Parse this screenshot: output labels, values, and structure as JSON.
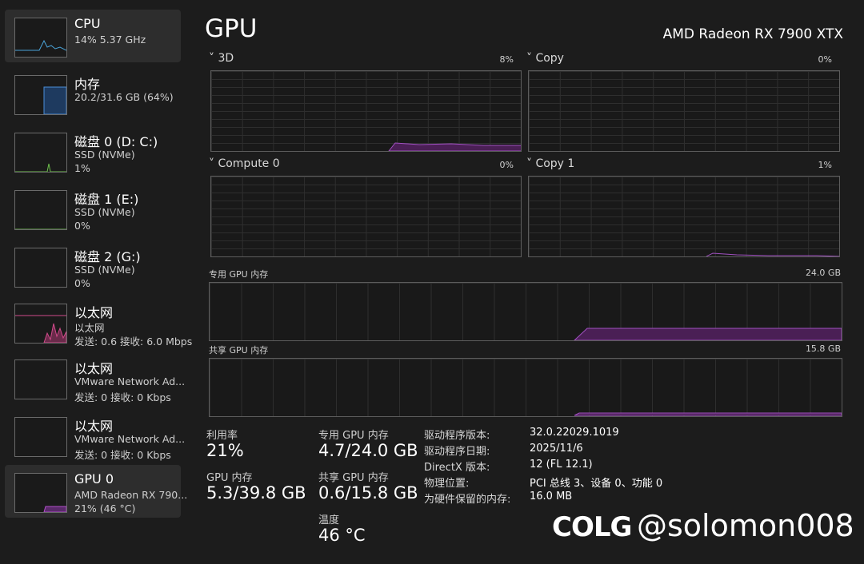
{
  "sidebar": {
    "items": [
      {
        "title": "CPU",
        "lines": [
          "14%  5.37 GHz"
        ]
      },
      {
        "title": "内存",
        "lines": [
          "20.2/31.6 GB (64%)"
        ]
      },
      {
        "title": "磁盘 0 (D: C:)",
        "lines": [
          "SSD (NVMe)",
          "1%"
        ]
      },
      {
        "title": "磁盘 1 (E:)",
        "lines": [
          "SSD (NVMe)",
          "0%"
        ]
      },
      {
        "title": "磁盘 2 (G:)",
        "lines": [
          "SSD (NVMe)",
          "0%"
        ]
      },
      {
        "title": "以太网",
        "lines": [
          "以太网",
          "发送: 0.6  接收: 6.0 Mbps"
        ]
      },
      {
        "title": "以太网",
        "lines": [
          "VMware Network Ad...",
          "发送: 0  接收: 0 Kbps"
        ]
      },
      {
        "title": "以太网",
        "lines": [
          "VMware Network Ad...",
          "发送: 0  接收: 0 Kbps"
        ]
      },
      {
        "title": "GPU 0",
        "lines": [
          "AMD Radeon RX 790...",
          "21% (46 °C)"
        ]
      }
    ]
  },
  "header": {
    "title": "GPU",
    "device": "AMD Radeon RX 7900 XTX"
  },
  "engines": [
    {
      "name": "3D",
      "value": "8%"
    },
    {
      "name": "Copy",
      "value": "0%"
    },
    {
      "name": "Compute 0",
      "value": "0%"
    },
    {
      "name": "Copy 1",
      "value": "1%"
    }
  ],
  "memory_graphs": [
    {
      "name": "专用 GPU 内存",
      "max": "24.0 GB"
    },
    {
      "name": "共享 GPU 内存",
      "max": "15.8 GB"
    }
  ],
  "stats": [
    {
      "label": "利用率",
      "value": "21%"
    },
    {
      "label": "GPU 内存",
      "value": "5.3/39.8 GB"
    },
    {
      "label": "专用 GPU 内存",
      "value": "4.7/24.0 GB"
    },
    {
      "label": "共享 GPU 内存",
      "value": "0.6/15.8 GB"
    },
    {
      "label": "温度",
      "value": "46 °C"
    }
  ],
  "details": [
    {
      "label": "驱动程序版本:",
      "value": "32.0.22029.1019"
    },
    {
      "label": "驱动程序日期:",
      "value": "2025/11/6"
    },
    {
      "label": "DirectX 版本:",
      "value": "12 (FL 12.1)"
    },
    {
      "label": "物理位置:",
      "value": "PCI 总线 3、设备 0、功能 0"
    },
    {
      "label": "为硬件保留的内存:",
      "value": "16.0 MB"
    }
  ],
  "watermark": {
    "logo": "COLG",
    "handle": "@solomon008"
  }
}
